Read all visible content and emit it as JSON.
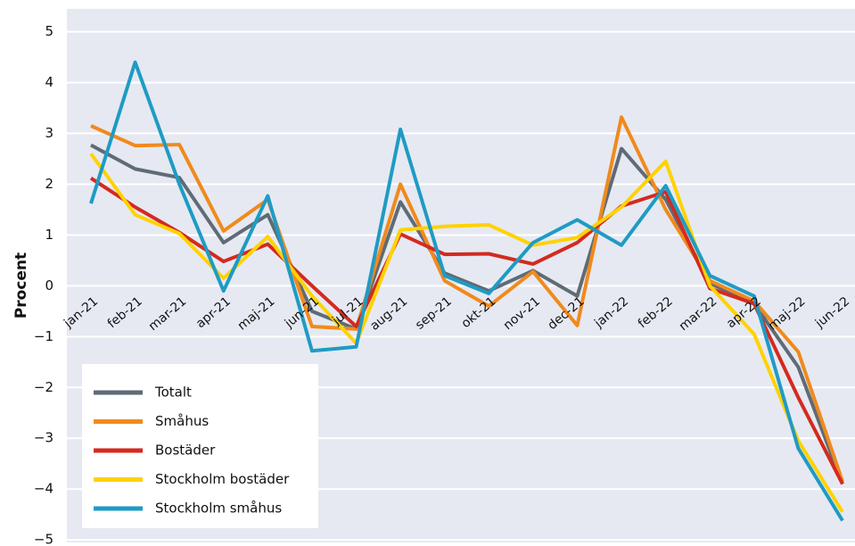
{
  "chart_data": {
    "type": "line",
    "ylabel": "Procent",
    "categories": [
      "jan-21",
      "feb-21",
      "mar-21",
      "apr-21",
      "maj-21",
      "jun-21",
      "jul-21",
      "aug-21",
      "sep-21",
      "okt-21",
      "nov-21",
      "dec-21",
      "jan-22",
      "feb-22",
      "mar-22",
      "apr-22",
      "maj-22",
      "jun-22"
    ],
    "series": [
      {
        "name": "Totalt",
        "color": "#5f6b75",
        "values": [
          2.77,
          2.3,
          2.13,
          0.85,
          1.4,
          -0.5,
          -0.85,
          1.65,
          0.25,
          -0.1,
          0.3,
          -0.2,
          2.7,
          1.7,
          0.05,
          -0.35,
          -1.6,
          -3.9
        ]
      },
      {
        "name": "Småhus",
        "color": "#f08a1c",
        "values": [
          3.15,
          2.76,
          2.78,
          1.08,
          1.7,
          -0.8,
          -0.85,
          2.0,
          0.1,
          -0.4,
          0.28,
          -0.78,
          3.32,
          1.5,
          0.1,
          -0.3,
          -1.3,
          -3.85
        ]
      },
      {
        "name": "Bostäder",
        "color": "#d42a1f",
        "values": [
          2.12,
          1.55,
          1.05,
          0.48,
          0.82,
          0.0,
          -0.8,
          1.02,
          0.62,
          0.63,
          0.43,
          0.85,
          1.57,
          1.85,
          -0.05,
          -0.35,
          -2.2,
          -3.9
        ]
      },
      {
        "name": "Stockholm bostäder",
        "color": "#ffd200",
        "values": [
          2.6,
          1.4,
          1.03,
          0.15,
          0.97,
          -0.2,
          -1.13,
          1.1,
          1.17,
          1.2,
          0.8,
          0.95,
          1.55,
          2.45,
          0.0,
          -0.95,
          -3.05,
          -4.45
        ]
      },
      {
        "name": "Stockholm småhus",
        "color": "#1f9bc4",
        "values": [
          1.62,
          4.4,
          2.0,
          -0.1,
          1.77,
          -1.28,
          -1.2,
          3.08,
          0.2,
          -0.15,
          0.85,
          1.3,
          0.8,
          1.97,
          0.2,
          -0.2,
          -3.2,
          -4.62
        ]
      }
    ],
    "ylim": [
      -5.05,
      5.45
    ],
    "yticks": [
      {
        "value": -5,
        "label": "−5"
      },
      {
        "value": -4,
        "label": "−4"
      },
      {
        "value": -3,
        "label": "−3"
      },
      {
        "value": -2,
        "label": "−2"
      },
      {
        "value": -1,
        "label": "−1"
      },
      0,
      1,
      2,
      3,
      4,
      5
    ],
    "grid": true,
    "legend": "lower left"
  }
}
